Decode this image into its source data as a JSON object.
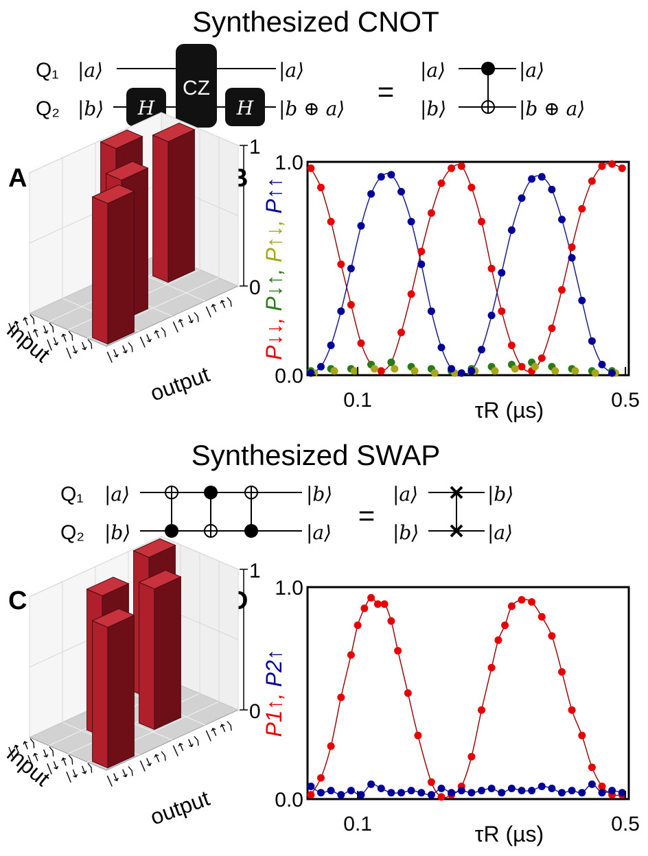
{
  "cnot": {
    "title": "Synthesized CNOT",
    "q1": "Q₁",
    "q2": "Q₂",
    "ket_a": "|a⟩",
    "ket_b": "|b⟩",
    "ket_bxa": "|b ⊕ a⟩",
    "h": "H",
    "cz": "CZ",
    "equals": "="
  },
  "swap": {
    "title": "Synthesized SWAP",
    "q1": "Q₁",
    "q2": "Q₂",
    "ket_a": "|a⟩",
    "ket_b": "|b⟩",
    "equals": "="
  },
  "panels": {
    "a": "A",
    "b": "B",
    "c": "C",
    "d": "D"
  },
  "truth_tables": {
    "input_label": "input",
    "output_label": "output",
    "states": [
      "|↓↓⟩",
      "|↓↑⟩",
      "|↑↓⟩",
      "|↑↑⟩"
    ],
    "z_ticks": [
      "0",
      "1"
    ],
    "bar_color": "#b0202c"
  },
  "chart_data": [
    {
      "type": "bar",
      "panel": "A",
      "rows": [
        "|↓↓⟩",
        "|↓↑⟩",
        "|↑↓⟩",
        "|↑↑⟩"
      ],
      "cols": [
        "|↓↓⟩",
        "|↓↑⟩",
        "|↑↓⟩",
        "|↑↑⟩"
      ],
      "values": [
        [
          1,
          0,
          0,
          0
        ],
        [
          0,
          1,
          0,
          0
        ],
        [
          0,
          0,
          0,
          1
        ],
        [
          0,
          0,
          1,
          0
        ]
      ],
      "xlabel": "output",
      "ylabel": "input",
      "zlim": [
        0,
        1
      ]
    },
    {
      "type": "scatter",
      "panel": "B",
      "xlabel": "τR (µs)",
      "ylabel": [
        "P↓↓",
        "P↓↑",
        "P↑↓",
        "P↑↑"
      ],
      "ylim": [
        0.0,
        1.0
      ],
      "x_ticks": [
        "0.1",
        "0.5"
      ],
      "y_ticks": [
        "0.0",
        "1.0"
      ],
      "series": [
        {
          "name": "P↓↓",
          "color": "#e60000",
          "x": [
            0.03,
            0.045,
            0.06,
            0.075,
            0.09,
            0.105,
            0.12,
            0.135,
            0.15,
            0.165,
            0.18,
            0.195,
            0.21,
            0.225,
            0.24,
            0.255,
            0.27,
            0.285,
            0.3,
            0.315,
            0.33,
            0.345,
            0.36,
            0.375,
            0.39,
            0.405,
            0.42,
            0.435,
            0.45,
            0.465,
            0.48,
            0.495
          ],
          "y": [
            0.97,
            0.88,
            0.72,
            0.52,
            0.33,
            0.15,
            0.05,
            0.02,
            0.06,
            0.2,
            0.38,
            0.58,
            0.76,
            0.9,
            0.97,
            0.98,
            0.88,
            0.72,
            0.5,
            0.3,
            0.14,
            0.04,
            0.02,
            0.08,
            0.22,
            0.4,
            0.6,
            0.78,
            0.91,
            0.98,
            0.99,
            0.97
          ]
        },
        {
          "name": "P↓↑",
          "color": "#2a7a1a",
          "x": [
            0.03,
            0.06,
            0.09,
            0.12,
            0.15,
            0.18,
            0.21,
            0.24,
            0.27,
            0.3,
            0.33,
            0.36,
            0.39,
            0.42,
            0.45,
            0.48
          ],
          "y": [
            0.02,
            0.03,
            0.03,
            0.05,
            0.06,
            0.04,
            0.03,
            0.02,
            0.03,
            0.04,
            0.05,
            0.06,
            0.04,
            0.03,
            0.02,
            0.02
          ]
        },
        {
          "name": "P↑↓",
          "color": "#a6a61a",
          "x": [
            0.035,
            0.065,
            0.095,
            0.125,
            0.155,
            0.185,
            0.215,
            0.245,
            0.275,
            0.305,
            0.335,
            0.365,
            0.395,
            0.425,
            0.455,
            0.485
          ],
          "y": [
            0.01,
            0.02,
            0.02,
            0.03,
            0.03,
            0.02,
            0.01,
            0.01,
            0.02,
            0.02,
            0.03,
            0.04,
            0.02,
            0.02,
            0.01,
            0.01
          ]
        },
        {
          "name": "P↑↑",
          "color": "#000099",
          "x": [
            0.03,
            0.045,
            0.06,
            0.075,
            0.09,
            0.105,
            0.12,
            0.135,
            0.15,
            0.165,
            0.18,
            0.195,
            0.21,
            0.225,
            0.24,
            0.255,
            0.27,
            0.285,
            0.3,
            0.315,
            0.33,
            0.345,
            0.36,
            0.375,
            0.39,
            0.405,
            0.42,
            0.435,
            0.45,
            0.465,
            0.48
          ],
          "y": [
            0.01,
            0.04,
            0.14,
            0.3,
            0.5,
            0.7,
            0.85,
            0.93,
            0.94,
            0.86,
            0.72,
            0.52,
            0.3,
            0.13,
            0.03,
            0.01,
            0.02,
            0.12,
            0.28,
            0.48,
            0.68,
            0.83,
            0.92,
            0.93,
            0.87,
            0.73,
            0.55,
            0.35,
            0.16,
            0.05,
            0.01
          ]
        }
      ]
    },
    {
      "type": "bar",
      "panel": "C",
      "rows": [
        "|↓↓⟩",
        "|↓↑⟩",
        "|↑↓⟩",
        "|↑↑⟩"
      ],
      "cols": [
        "|↓↓⟩",
        "|↓↑⟩",
        "|↑↓⟩",
        "|↑↑⟩"
      ],
      "values": [
        [
          1,
          0,
          0,
          0
        ],
        [
          0,
          0,
          1,
          0
        ],
        [
          0,
          1,
          0,
          0
        ],
        [
          0,
          0,
          0,
          1
        ]
      ],
      "xlabel": "output",
      "ylabel": "input",
      "zlim": [
        0,
        1
      ]
    },
    {
      "type": "scatter",
      "panel": "D",
      "xlabel": "τR (µs)",
      "ylabel": [
        "P1↑",
        "P2↑"
      ],
      "ylim": [
        0.0,
        1.0
      ],
      "x_ticks": [
        "0.1",
        "0.5"
      ],
      "y_ticks": [
        "0.0",
        "1.0"
      ],
      "series": [
        {
          "name": "P1↑",
          "color": "#e60000",
          "x": [
            0.03,
            0.045,
            0.06,
            0.075,
            0.09,
            0.1,
            0.11,
            0.12,
            0.13,
            0.14,
            0.15,
            0.16,
            0.175,
            0.19,
            0.21,
            0.225,
            0.24,
            0.255,
            0.27,
            0.285,
            0.3,
            0.31,
            0.32,
            0.33,
            0.345,
            0.36,
            0.375,
            0.39,
            0.405,
            0.42,
            0.435,
            0.45,
            0.465,
            0.48,
            0.495
          ],
          "y": [
            0.02,
            0.1,
            0.25,
            0.48,
            0.68,
            0.82,
            0.9,
            0.95,
            0.92,
            0.92,
            0.84,
            0.7,
            0.5,
            0.3,
            0.08,
            0.01,
            0.02,
            0.06,
            0.2,
            0.42,
            0.62,
            0.75,
            0.82,
            0.91,
            0.94,
            0.93,
            0.86,
            0.77,
            0.6,
            0.42,
            0.3,
            0.15,
            0.06,
            0.02,
            0.02
          ]
        },
        {
          "name": "P2↑",
          "color": "#000099",
          "x": [
            0.03,
            0.045,
            0.06,
            0.075,
            0.09,
            0.105,
            0.12,
            0.135,
            0.15,
            0.165,
            0.18,
            0.195,
            0.21,
            0.225,
            0.24,
            0.255,
            0.27,
            0.285,
            0.3,
            0.315,
            0.33,
            0.345,
            0.36,
            0.375,
            0.39,
            0.405,
            0.42,
            0.435,
            0.45,
            0.465,
            0.48,
            0.495
          ],
          "y": [
            0.06,
            0.03,
            0.04,
            0.02,
            0.04,
            0.02,
            0.07,
            0.05,
            0.03,
            0.03,
            0.04,
            0.03,
            0.02,
            0.05,
            0.03,
            0.04,
            0.03,
            0.04,
            0.05,
            0.03,
            0.05,
            0.04,
            0.04,
            0.06,
            0.05,
            0.03,
            0.04,
            0.03,
            0.07,
            0.03,
            0.04,
            0.03
          ]
        }
      ]
    }
  ]
}
